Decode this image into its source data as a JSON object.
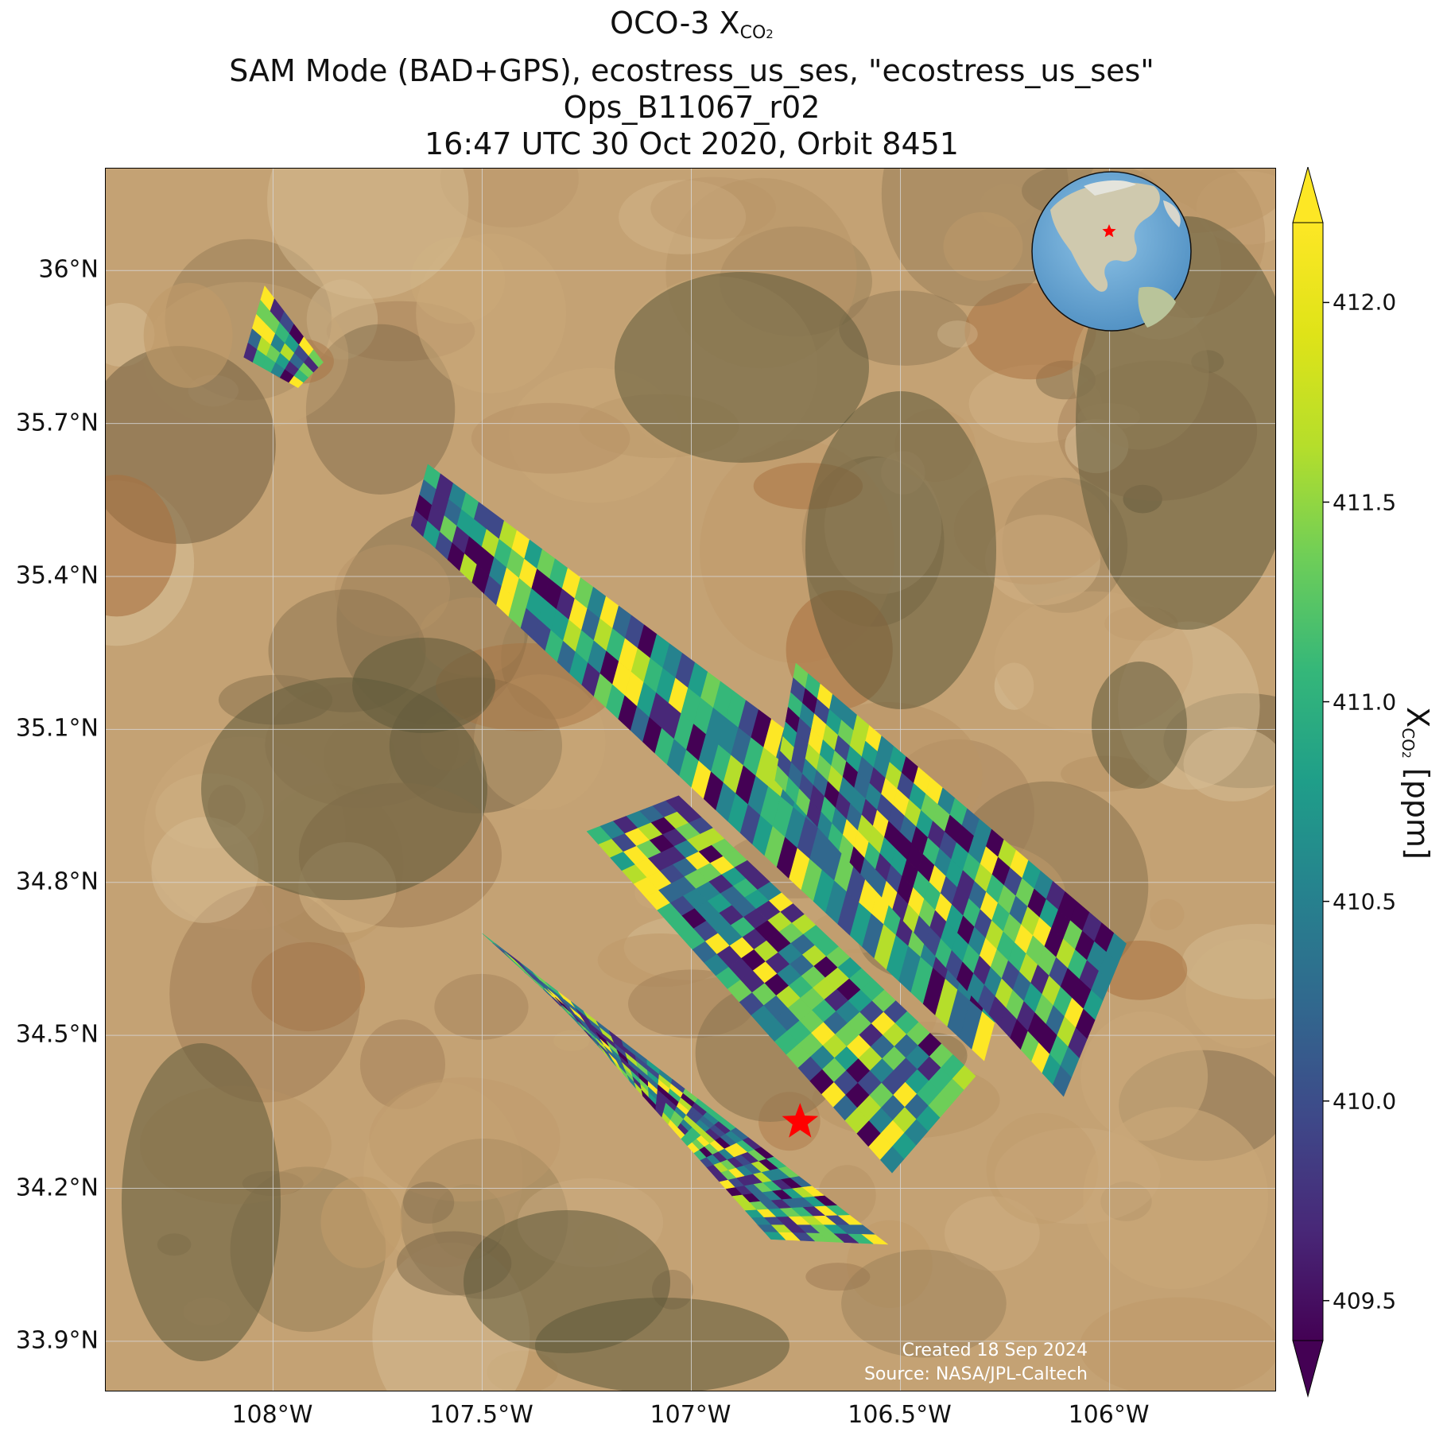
{
  "title": {
    "line1_prefix": "OCO-3 X",
    "line1_sub": "CO",
    "line1_sub2": "2",
    "line2": "SAM Mode (BAD+GPS), ecostress_us_ses, \"ecostress_us_ses\"",
    "line3": "Ops_B11067_r02",
    "line4": "16:47 UTC 30 Oct 2020, Orbit 8451"
  },
  "map": {
    "extent": {
      "lon_min": -108.4,
      "lon_max": -105.6,
      "lat_min": 33.8,
      "lat_max": 36.2
    },
    "latitude_ticks": [
      {
        "value": 36.0,
        "label": "36°N"
      },
      {
        "value": 35.7,
        "label": "35.7°N"
      },
      {
        "value": 35.4,
        "label": "35.4°N"
      },
      {
        "value": 35.1,
        "label": "35.1°N"
      },
      {
        "value": 34.8,
        "label": "34.8°N"
      },
      {
        "value": 34.5,
        "label": "34.5°N"
      },
      {
        "value": 34.2,
        "label": "34.2°N"
      },
      {
        "value": 33.9,
        "label": "33.9°N"
      }
    ],
    "longitude_ticks": [
      {
        "value": -108.0,
        "label": "108°W"
      },
      {
        "value": -107.5,
        "label": "107.5°W"
      },
      {
        "value": -107.0,
        "label": "107°W"
      },
      {
        "value": -106.5,
        "label": "106.5°W"
      },
      {
        "value": -106.0,
        "label": "106°W"
      }
    ],
    "target_marker": {
      "lon": -106.74,
      "lat": 34.33,
      "color": "#ff0000",
      "symbol": "star"
    },
    "basemap": "satellite imagery (desert terrain)",
    "inset_globe": {
      "marker_lon": -106.74,
      "marker_lat": 34.33,
      "marker_color": "#ff0000"
    },
    "swaths": [
      {
        "name": "swath-1",
        "corners": [
          [
            -108.02,
            35.97
          ],
          [
            -107.88,
            35.82
          ],
          [
            -107.94,
            35.77
          ],
          [
            -108.07,
            35.83
          ]
        ]
      },
      {
        "name": "swath-2",
        "corners": [
          [
            -107.63,
            35.62
          ],
          [
            -106.2,
            34.75
          ],
          [
            -106.3,
            34.45
          ],
          [
            -107.67,
            35.5
          ]
        ]
      },
      {
        "name": "swath-3",
        "corners": [
          [
            -106.75,
            35.23
          ],
          [
            -105.96,
            34.68
          ],
          [
            -106.11,
            34.38
          ],
          [
            -106.8,
            35.0
          ]
        ]
      },
      {
        "name": "swath-4",
        "corners": [
          [
            -107.03,
            34.97
          ],
          [
            -106.32,
            34.42
          ],
          [
            -106.52,
            34.23
          ],
          [
            -107.25,
            34.9
          ]
        ]
      },
      {
        "name": "swath-5",
        "corners": [
          [
            -107.5,
            34.7
          ],
          [
            -106.53,
            34.09
          ],
          [
            -106.81,
            34.1
          ],
          [
            -107.3,
            34.55
          ]
        ]
      }
    ],
    "credit_created": "Created 18 Sep 2024",
    "credit_source": "Source: NASA/JPL-Caltech"
  },
  "colorbar": {
    "colormap": "viridis",
    "vmin": 409.4,
    "vmax": 412.2,
    "extend": "both",
    "ticks": [
      {
        "value": 412.0,
        "label": "412.0"
      },
      {
        "value": 411.5,
        "label": "411.5"
      },
      {
        "value": 411.0,
        "label": "411.0"
      },
      {
        "value": 410.5,
        "label": "410.5"
      },
      {
        "value": 410.0,
        "label": "410.0"
      },
      {
        "value": 409.5,
        "label": "409.5"
      }
    ],
    "label_prefix": "X",
    "label_sub": "CO",
    "label_sub2": "2",
    "label_suffix": " [ppm]"
  }
}
